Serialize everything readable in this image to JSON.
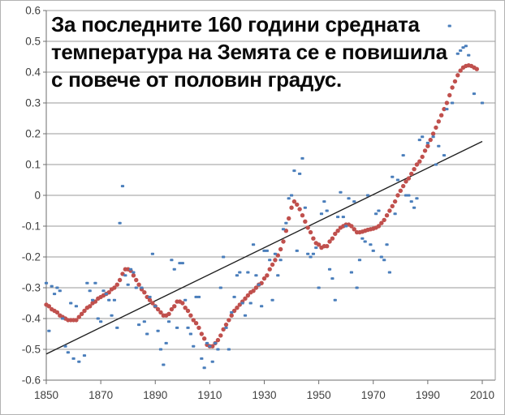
{
  "title": {
    "line1": "За последните 160 години средната",
    "line2": "температура на Земята се е повишила",
    "line3": "с повече от половин градус."
  },
  "colors": {
    "annual_points": "#4a7ebb",
    "smoothed_curve": "#c0504d",
    "trend_line": "#1f1f1f",
    "gridline": "#9a9a9a",
    "axis": "#6e6e6e",
    "tick_text": "#404040",
    "background": "#ffffff"
  },
  "chart_data": {
    "type": "scatter",
    "title": "За последните 160 години средната температура на Земята се е повишила с повече от половин градус.",
    "xlabel": "",
    "ylabel": "",
    "x_range": [
      1850,
      2010
    ],
    "y_range": [
      -0.6,
      0.6
    ],
    "x_ticks": [
      1850,
      1870,
      1890,
      1910,
      1930,
      1950,
      1970,
      1990,
      2010
    ],
    "y_tick_labels": [
      "0.6",
      "0.5",
      "0.4",
      "0.3",
      "0.2",
      "0.1",
      "0",
      "-0.1",
      "-0.2",
      "-0.3",
      "-0.4",
      "-0.5",
      "-0.6"
    ],
    "y_tick_values": [
      0.6,
      0.5,
      0.4,
      0.3,
      0.2,
      0.1,
      0,
      -0.1,
      -0.2,
      -0.3,
      -0.4,
      -0.5,
      -0.6
    ],
    "grid": "horizontal",
    "legend": "none",
    "series": [
      {
        "name": "annual_temperature_anomaly",
        "marker": "small-square",
        "color": "#4a7ebb",
        "points": [
          [
            1850,
            -0.285
          ],
          [
            1851,
            -0.44
          ],
          [
            1852,
            -0.295
          ],
          [
            1853,
            -0.32
          ],
          [
            1854,
            -0.3
          ],
          [
            1855,
            -0.31
          ],
          [
            1856,
            -0.4
          ],
          [
            1857,
            -0.49
          ],
          [
            1858,
            -0.51
          ],
          [
            1859,
            -0.35
          ],
          [
            1860,
            -0.53
          ],
          [
            1861,
            -0.36
          ],
          [
            1862,
            -0.54
          ],
          [
            1864,
            -0.52
          ],
          [
            1865,
            -0.285
          ],
          [
            1866,
            -0.31
          ],
          [
            1867,
            -0.34
          ],
          [
            1868,
            -0.285
          ],
          [
            1869,
            -0.4
          ],
          [
            1870,
            -0.41
          ],
          [
            1871,
            -0.31
          ],
          [
            1872,
            -0.32
          ],
          [
            1873,
            -0.34
          ],
          [
            1874,
            -0.39
          ],
          [
            1875,
            -0.34
          ],
          [
            1876,
            -0.43
          ],
          [
            1877,
            -0.09
          ],
          [
            1878,
            0.03
          ],
          [
            1879,
            -0.26
          ],
          [
            1880,
            -0.29
          ],
          [
            1881,
            -0.24
          ],
          [
            1882,
            -0.25
          ],
          [
            1883,
            -0.3
          ],
          [
            1884,
            -0.42
          ],
          [
            1885,
            -0.3
          ],
          [
            1886,
            -0.41
          ],
          [
            1887,
            -0.45
          ],
          [
            1888,
            -0.33
          ],
          [
            1889,
            -0.19
          ],
          [
            1890,
            -0.36
          ],
          [
            1891,
            -0.44
          ],
          [
            1892,
            -0.5
          ],
          [
            1893,
            -0.55
          ],
          [
            1894,
            -0.48
          ],
          [
            1895,
            -0.41
          ],
          [
            1896,
            -0.21
          ],
          [
            1897,
            -0.24
          ],
          [
            1898,
            -0.43
          ],
          [
            1899,
            -0.22
          ],
          [
            1900,
            -0.22
          ],
          [
            1901,
            -0.34
          ],
          [
            1902,
            -0.43
          ],
          [
            1903,
            -0.45
          ],
          [
            1904,
            -0.49
          ],
          [
            1905,
            -0.33
          ],
          [
            1906,
            -0.33
          ],
          [
            1907,
            -0.53
          ],
          [
            1908,
            -0.56
          ],
          [
            1909,
            -0.48
          ],
          [
            1910,
            -0.49
          ],
          [
            1911,
            -0.54
          ],
          [
            1912,
            -0.48
          ],
          [
            1913,
            -0.5
          ],
          [
            1914,
            -0.3
          ],
          [
            1915,
            -0.2
          ],
          [
            1916,
            -0.43
          ],
          [
            1917,
            -0.5
          ],
          [
            1918,
            -0.38
          ],
          [
            1919,
            -0.33
          ],
          [
            1920,
            -0.26
          ],
          [
            1921,
            -0.25
          ],
          [
            1922,
            -0.35
          ],
          [
            1923,
            -0.39
          ],
          [
            1924,
            -0.25
          ],
          [
            1925,
            -0.35
          ],
          [
            1926,
            -0.16
          ],
          [
            1927,
            -0.26
          ],
          [
            1928,
            -0.29
          ],
          [
            1929,
            -0.36
          ],
          [
            1930,
            -0.18
          ],
          [
            1931,
            -0.18
          ],
          [
            1932,
            -0.21
          ],
          [
            1933,
            -0.34
          ],
          [
            1934,
            -0.19
          ],
          [
            1935,
            -0.26
          ],
          [
            1936,
            -0.21
          ],
          [
            1937,
            -0.11
          ],
          [
            1938,
            -0.09
          ],
          [
            1939,
            -0.01
          ],
          [
            1940,
            0.0
          ],
          [
            1941,
            0.08
          ],
          [
            1942,
            -0.18
          ],
          [
            1943,
            0.07
          ],
          [
            1944,
            0.12
          ],
          [
            1945,
            -0.04
          ],
          [
            1946,
            -0.19
          ],
          [
            1947,
            -0.2
          ],
          [
            1948,
            -0.19
          ],
          [
            1949,
            -0.17
          ],
          [
            1950,
            -0.3
          ],
          [
            1951,
            -0.06
          ],
          [
            1952,
            -0.02
          ],
          [
            1953,
            -0.05
          ],
          [
            1954,
            -0.24
          ],
          [
            1955,
            -0.27
          ],
          [
            1956,
            -0.34
          ],
          [
            1957,
            -0.07
          ],
          [
            1958,
            0.01
          ],
          [
            1959,
            -0.07
          ],
          [
            1960,
            -0.1
          ],
          [
            1961,
            -0.01
          ],
          [
            1962,
            -0.25
          ],
          [
            1963,
            -0.02
          ],
          [
            1964,
            -0.3
          ],
          [
            1965,
            -0.21
          ],
          [
            1966,
            -0.14
          ],
          [
            1967,
            -0.15
          ],
          [
            1968,
            0.0
          ],
          [
            1969,
            -0.16
          ],
          [
            1970,
            -0.18
          ],
          [
            1971,
            -0.06
          ],
          [
            1972,
            -0.05
          ],
          [
            1973,
            -0.2
          ],
          [
            1974,
            -0.21
          ],
          [
            1975,
            -0.16
          ],
          [
            1976,
            -0.25
          ],
          [
            1977,
            0.06
          ],
          [
            1978,
            -0.06
          ],
          [
            1979,
            0.05
          ],
          [
            1981,
            0.13
          ],
          [
            1982,
            0.0
          ],
          [
            1983,
            0.0
          ],
          [
            1984,
            -0.02
          ],
          [
            1985,
            -0.04
          ],
          [
            1986,
            -0.01
          ],
          [
            1987,
            0.18
          ],
          [
            1988,
            0.19
          ],
          [
            1990,
            0.17
          ],
          [
            1992,
            0.19
          ],
          [
            1993,
            0.1
          ],
          [
            1994,
            0.16
          ],
          [
            1996,
            0.13
          ],
          [
            1997,
            0.28
          ],
          [
            1998,
            0.55
          ],
          [
            1999,
            0.3
          ],
          [
            2001,
            0.46
          ],
          [
            2002,
            0.47
          ],
          [
            2003,
            0.48
          ],
          [
            2004,
            0.485
          ],
          [
            2005,
            0.455
          ],
          [
            2007,
            0.33
          ],
          [
            2010,
            0.3
          ]
        ]
      },
      {
        "name": "smoothed_temperature_anomaly",
        "marker": "dot",
        "color": "#c0504d",
        "start_year": 1850,
        "values": [
          -0.355,
          -0.36,
          -0.37,
          -0.375,
          -0.38,
          -0.39,
          -0.395,
          -0.4,
          -0.405,
          -0.405,
          -0.405,
          -0.405,
          -0.395,
          -0.385,
          -0.375,
          -0.365,
          -0.36,
          -0.35,
          -0.345,
          -0.335,
          -0.33,
          -0.325,
          -0.32,
          -0.315,
          -0.305,
          -0.3,
          -0.29,
          -0.275,
          -0.255,
          -0.24,
          -0.24,
          -0.245,
          -0.26,
          -0.275,
          -0.29,
          -0.305,
          -0.315,
          -0.33,
          -0.34,
          -0.35,
          -0.36,
          -0.37,
          -0.38,
          -0.39,
          -0.39,
          -0.385,
          -0.37,
          -0.36,
          -0.345,
          -0.345,
          -0.35,
          -0.365,
          -0.375,
          -0.39,
          -0.405,
          -0.415,
          -0.43,
          -0.45,
          -0.465,
          -0.485,
          -0.49,
          -0.49,
          -0.48,
          -0.47,
          -0.455,
          -0.435,
          -0.42,
          -0.405,
          -0.39,
          -0.375,
          -0.365,
          -0.355,
          -0.345,
          -0.335,
          -0.325,
          -0.315,
          -0.31,
          -0.3,
          -0.29,
          -0.285,
          -0.27,
          -0.26,
          -0.24,
          -0.225,
          -0.21,
          -0.195,
          -0.175,
          -0.15,
          -0.115,
          -0.075,
          -0.04,
          -0.02,
          -0.03,
          -0.045,
          -0.065,
          -0.085,
          -0.105,
          -0.12,
          -0.14,
          -0.155,
          -0.16,
          -0.17,
          -0.165,
          -0.165,
          -0.15,
          -0.14,
          -0.125,
          -0.115,
          -0.105,
          -0.1,
          -0.095,
          -0.095,
          -0.1,
          -0.11,
          -0.12,
          -0.12,
          -0.118,
          -0.115,
          -0.112,
          -0.11,
          -0.108,
          -0.105,
          -0.1,
          -0.09,
          -0.08,
          -0.065,
          -0.05,
          -0.035,
          -0.02,
          0,
          0.015,
          0.03,
          0.045,
          0.055,
          0.07,
          0.085,
          0.1,
          0.11,
          0.125,
          0.145,
          0.16,
          0.18,
          0.2,
          0.22,
          0.24,
          0.26,
          0.28,
          0.3,
          0.325,
          0.35,
          0.37,
          0.39,
          0.405,
          0.415,
          0.42,
          0.422,
          0.42,
          0.415,
          0.41
        ]
      },
      {
        "name": "linear_trend",
        "marker": "line",
        "color": "#1f1f1f",
        "points": [
          [
            1850,
            -0.515
          ],
          [
            2010,
            0.175
          ]
        ]
      }
    ]
  }
}
